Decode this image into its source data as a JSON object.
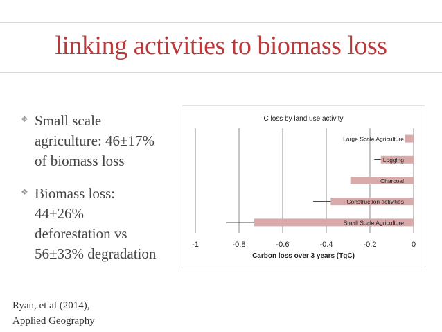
{
  "slide": {
    "title": "linking activities to biomass loss"
  },
  "bullets": [
    {
      "lines": [
        "Small scale",
        "agriculture: 46±17%",
        "of biomass loss"
      ]
    },
    {
      "lines": [
        "Biomass loss:",
        "44±26%",
        "deforestation vs",
        "56±33% degradation"
      ]
    }
  ],
  "citation": {
    "line1": "Ryan, et al (2014),",
    "line2": "Applied Geography"
  },
  "colors": {
    "title": "#b83a3a",
    "bar": "#d8aaaa",
    "grid": "#8c8c8c"
  },
  "chart_data": {
    "type": "bar",
    "orientation": "horizontal",
    "title": "C loss by land use activity",
    "xlabel": "Carbon loss over 3 years (TgC)",
    "ylabel": "",
    "xlim": [
      -1,
      0
    ],
    "xticks": [
      -1,
      -0.8,
      -0.6,
      -0.4,
      -0.2,
      0
    ],
    "xtick_labels": [
      "-1",
      "-0.8",
      "-0.6",
      "-0.4",
      "-0.2",
      "0"
    ],
    "categories": [
      "Large Scale Agriculture",
      "Logging",
      "Charcoal",
      "Construction activities",
      "Small Scale Agriculture"
    ],
    "values": [
      -0.04,
      -0.15,
      -0.29,
      -0.38,
      -0.73
    ],
    "error": [
      0.0,
      0.03,
      0.0,
      0.08,
      0.13
    ],
    "grid": "vertical"
  }
}
